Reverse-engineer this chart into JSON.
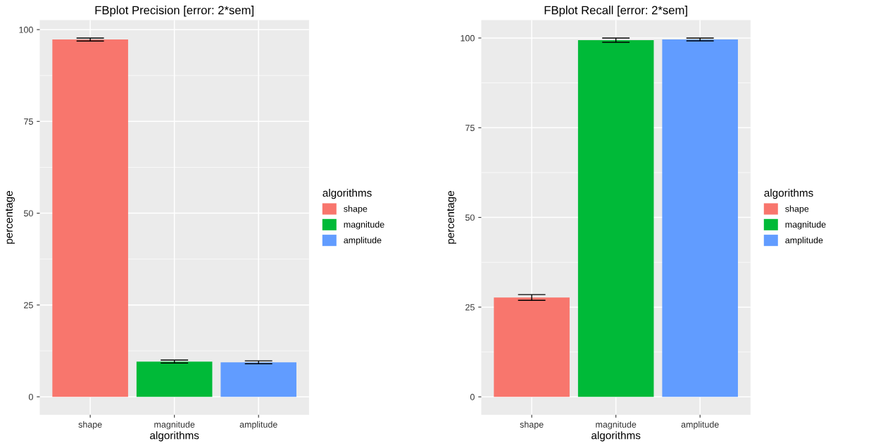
{
  "chart_data": [
    {
      "type": "bar",
      "title": "FBplot Precision [error: 2*sem]",
      "xlabel": "algorithms",
      "ylabel": "percentage",
      "legend_title": "algorithms",
      "legend": "right",
      "grid": true,
      "categories": [
        "shape",
        "magnitude",
        "amplitude"
      ],
      "series": [
        {
          "name": "shape",
          "color": "#f8766d",
          "values": [
            97.3,
            null,
            null
          ],
          "errors": [
            0.4,
            null,
            null
          ]
        },
        {
          "name": "magnitude",
          "color": "#00ba38",
          "values": [
            null,
            9.6,
            null
          ],
          "errors": [
            null,
            0.4,
            null
          ]
        },
        {
          "name": "amplitude",
          "color": "#619cff",
          "values": [
            null,
            null,
            9.4
          ],
          "errors": [
            null,
            null,
            0.4
          ]
        }
      ],
      "ylim": [
        -4.9,
        102.6
      ],
      "yticks": [
        0,
        25,
        50,
        75,
        100
      ]
    },
    {
      "type": "bar",
      "title": "FBplot Recall [error: 2*sem]",
      "xlabel": "algorithms",
      "ylabel": "percentage",
      "legend_title": "algorithms",
      "legend": "right",
      "grid": true,
      "categories": [
        "shape",
        "magnitude",
        "amplitude"
      ],
      "series": [
        {
          "name": "shape",
          "color": "#f8766d",
          "values": [
            27.7,
            null,
            null
          ],
          "errors": [
            0.8,
            null,
            null
          ]
        },
        {
          "name": "magnitude",
          "color": "#00ba38",
          "values": [
            null,
            99.4,
            null
          ],
          "errors": [
            null,
            0.6,
            null
          ]
        },
        {
          "name": "amplitude",
          "color": "#619cff",
          "values": [
            null,
            null,
            99.6
          ],
          "errors": [
            null,
            null,
            0.4
          ]
        }
      ],
      "ylim": [
        -5,
        105
      ],
      "yticks": [
        0,
        25,
        50,
        75,
        100
      ]
    }
  ]
}
